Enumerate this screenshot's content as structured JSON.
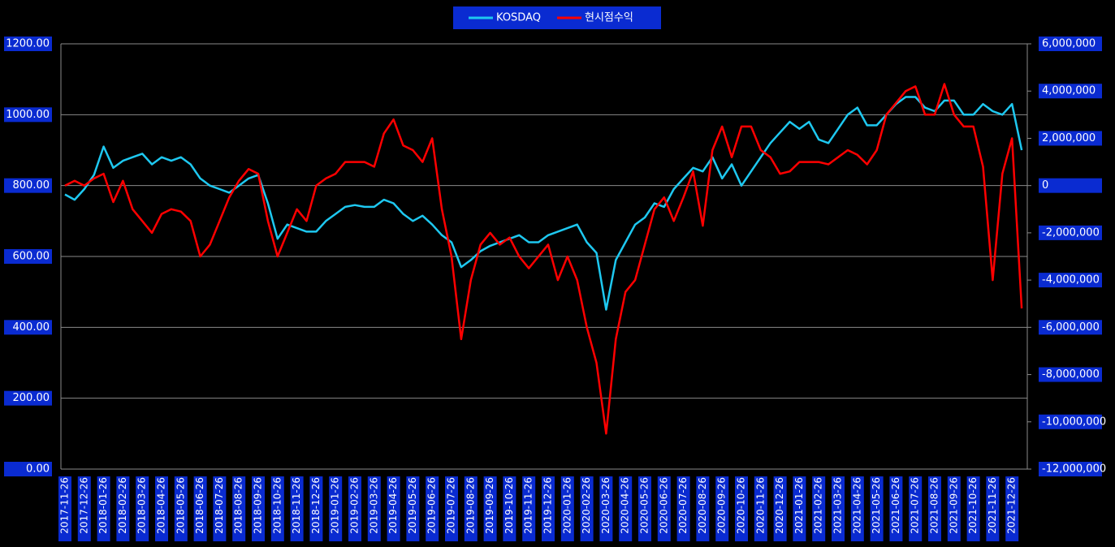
{
  "chart_data": {
    "type": "line",
    "categories": [
      "2017-11-26",
      null,
      "2017-12-26",
      null,
      "2018-01-26",
      null,
      "2018-02-26",
      null,
      "2018-03-26",
      null,
      "2018-04-26",
      null,
      "2018-05-26",
      null,
      "2018-06-26",
      null,
      "2018-07-26",
      null,
      "2018-08-26",
      null,
      "2018-09-26",
      null,
      "2018-10-26",
      null,
      "2018-11-26",
      null,
      "2018-12-26",
      null,
      "2019-01-26",
      null,
      "2019-02-26",
      null,
      "2019-03-26",
      null,
      "2019-04-26",
      null,
      "2019-05-26",
      null,
      "2019-06-26",
      null,
      "2019-07-26",
      null,
      "2019-08-26",
      null,
      "2019-09-26",
      null,
      "2019-10-26",
      null,
      "2019-11-26",
      null,
      "2019-12-26",
      null,
      "2020-01-26",
      null,
      "2020-02-26",
      null,
      "2020-03-26",
      null,
      "2020-04-26",
      null,
      "2020-05-26",
      null,
      "2020-06-26",
      null,
      "2020-07-26",
      null,
      "2020-08-26",
      null,
      "2020-09-26",
      null,
      "2020-10-26",
      null,
      "2020-11-26",
      null,
      "2020-12-26",
      null,
      "2021-01-26",
      null,
      "2021-02-26",
      null,
      "2021-03-26",
      null,
      "2021-04-26",
      null,
      "2021-05-26",
      null,
      "2021-06-26",
      null,
      "2021-07-26",
      null,
      "2021-08-26",
      null,
      "2021-09-26",
      null,
      "2021-10-26",
      null,
      "2021-11-26",
      null,
      "2021-12-26",
      null
    ],
    "series": [
      {
        "name": "KOSDAQ",
        "color": "#1ec8f0",
        "axis": "y",
        "values": [
          775,
          760,
          790,
          830,
          910,
          850,
          870,
          880,
          890,
          860,
          880,
          870,
          880,
          860,
          820,
          800,
          790,
          780,
          800,
          820,
          830,
          750,
          650,
          690,
          680,
          670,
          670,
          700,
          720,
          740,
          745,
          740,
          740,
          760,
          750,
          720,
          700,
          715,
          690,
          660,
          640,
          570,
          590,
          615,
          630,
          640,
          650,
          660,
          640,
          640,
          660,
          670,
          680,
          690,
          640,
          610,
          450,
          590,
          640,
          690,
          710,
          750,
          740,
          790,
          820,
          850,
          840,
          880,
          820,
          860,
          800,
          840,
          880,
          920,
          950,
          980,
          960,
          980,
          930,
          920,
          960,
          1000,
          1020,
          970,
          970,
          1000,
          1030,
          1050,
          1050,
          1020,
          1010,
          1040,
          1040,
          1000,
          1000,
          1030,
          1010,
          1000,
          1030,
          900
        ]
      },
      {
        "name": "현시점수익",
        "color": "#ff0000",
        "axis": "y2",
        "values": [
          0,
          200000,
          0,
          300000,
          500000,
          -700000,
          200000,
          -1000000,
          -1500000,
          -2000000,
          -1200000,
          -1000000,
          -1100000,
          -1500000,
          -3000000,
          -2500000,
          -1500000,
          -500000,
          200000,
          700000,
          500000,
          -1500000,
          -3000000,
          -2000000,
          -1000000,
          -1500000,
          0,
          300000,
          500000,
          1000000,
          1000000,
          1000000,
          800000,
          2200000,
          2800000,
          1700000,
          1500000,
          1000000,
          2000000,
          -1000000,
          -3000000,
          -6500000,
          -4000000,
          -2500000,
          -2000000,
          -2500000,
          -2200000,
          -3000000,
          -3500000,
          -3000000,
          -2500000,
          -4000000,
          -3000000,
          -4000000,
          -6000000,
          -7500000,
          -10500000,
          -6500000,
          -4500000,
          -4000000,
          -2500000,
          -1000000,
          -500000,
          -1500000,
          -500000,
          600000,
          -1700000,
          1500000,
          2500000,
          1200000,
          2500000,
          2500000,
          1500000,
          1200000,
          500000,
          600000,
          1000000,
          1000000,
          1000000,
          900000,
          1200000,
          1500000,
          1300000,
          900000,
          1500000,
          3000000,
          3500000,
          4000000,
          4200000,
          3000000,
          3000000,
          4300000,
          3000000,
          2500000,
          2500000,
          800000,
          -4000000,
          500000,
          2000000,
          -5200000
        ]
      }
    ],
    "ylim": [
      0,
      1200
    ],
    "yticks": [
      {
        "value": 0,
        "label": "0.00"
      },
      {
        "value": 200,
        "label": "200.00"
      },
      {
        "value": 400,
        "label": "400.00"
      },
      {
        "value": 600,
        "label": "600.00"
      },
      {
        "value": 800,
        "label": "800.00"
      },
      {
        "value": 1000,
        "label": "1000.00"
      },
      {
        "value": 1200,
        "label": "1200.00"
      }
    ],
    "y2lim": [
      -12000000,
      6000000
    ],
    "y2ticks": [
      {
        "value": -12000000,
        "label": "-12,000,000"
      },
      {
        "value": -10000000,
        "label": "-10,000,000"
      },
      {
        "value": -8000000,
        "label": "-8,000,000"
      },
      {
        "value": -6000000,
        "label": "-6,000,000"
      },
      {
        "value": -4000000,
        "label": "-4,000,000"
      },
      {
        "value": -2000000,
        "label": "-2,000,000"
      },
      0,
      {
        "value": 2000000,
        "label": "2,000,000"
      },
      {
        "value": 4000000,
        "label": "4,000,000"
      },
      {
        "value": 6000000,
        "label": "6,000,000"
      }
    ],
    "grid": true,
    "legend": "top"
  }
}
